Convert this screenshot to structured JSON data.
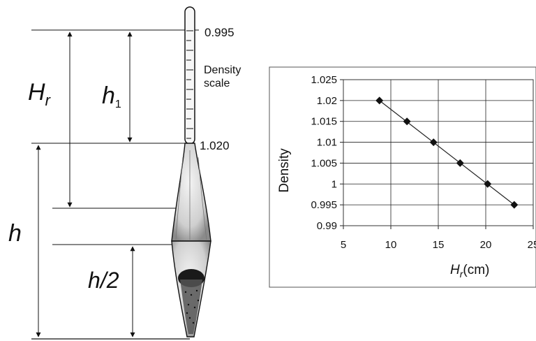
{
  "diagram": {
    "label_Hr_main": "H",
    "label_Hr_sub": "r",
    "label_h1_main": "h",
    "label_h1_sub": "1",
    "label_h": "h",
    "label_half_h": "h/2",
    "scale_top": "0.995",
    "scale_bottom": "1.020",
    "scale_caption_line1": "Density",
    "scale_caption_line2": "scale"
  },
  "chart_data": {
    "type": "scatter",
    "title": "",
    "xlabel_main": "H",
    "xlabel_sub": "r",
    "xlabel_unit": "(cm)",
    "ylabel": "Density",
    "xlim": [
      5,
      25
    ],
    "ylim": [
      0.99,
      1.025
    ],
    "x_ticks": [
      "5",
      "10",
      "15",
      "20",
      "25"
    ],
    "y_ticks": [
      "0.99",
      "0.995",
      "1",
      "1.005",
      "1.01",
      "1.015",
      "1.02",
      "1.025"
    ],
    "grid": true,
    "series": [
      {
        "marker": "diamond",
        "line": "linear-fit",
        "points": [
          {
            "x": 8.8,
            "y": 1.02
          },
          {
            "x": 11.7,
            "y": 1.015
          },
          {
            "x": 14.5,
            "y": 1.01
          },
          {
            "x": 17.3,
            "y": 1.005
          },
          {
            "x": 20.2,
            "y": 1.0
          },
          {
            "x": 23.0,
            "y": 0.995
          }
        ]
      }
    ]
  }
}
